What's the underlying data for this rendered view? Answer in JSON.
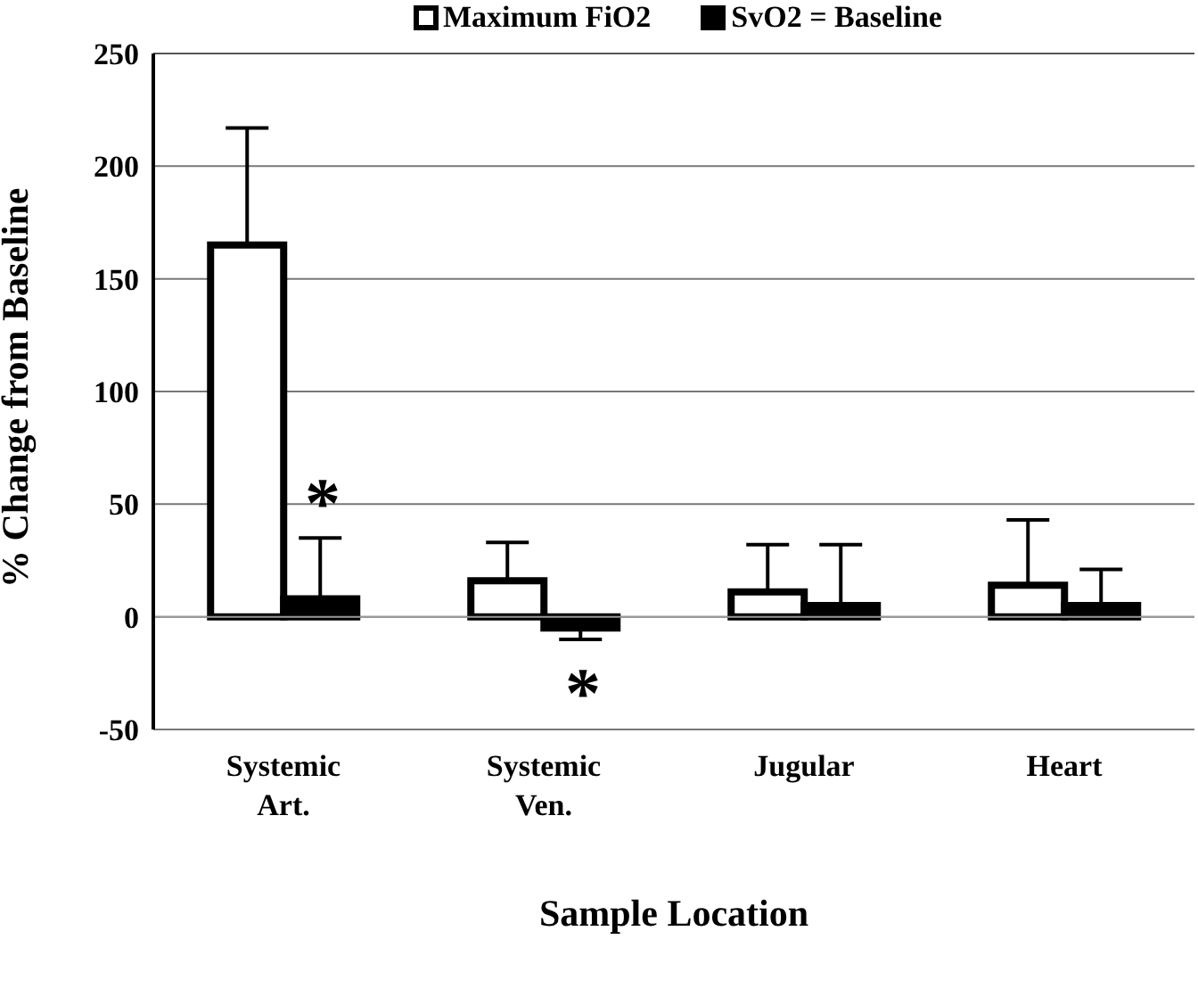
{
  "chart_data": {
    "type": "bar",
    "xlabel": "Sample Location",
    "ylabel": "% Change from Baseline",
    "categories": [
      "Systemic Art.",
      "Systemic Ven.",
      "Jugular",
      "Heart"
    ],
    "series": [
      {
        "name": "Maximum FiO2",
        "color": "#ffffff",
        "values": [
          165,
          16,
          11,
          14
        ],
        "errors": [
          [
            165,
            217
          ],
          [
            16,
            33
          ],
          [
            11,
            32
          ],
          [
            14,
            43
          ]
        ]
      },
      {
        "name": "SvO2 = Baseline",
        "color": "#000000",
        "values": [
          8,
          -5,
          5,
          5
        ],
        "errors": [
          [
            8,
            35
          ],
          [
            -10,
            -5
          ],
          [
            5,
            32
          ],
          [
            5,
            21
          ]
        ]
      }
    ],
    "ylim": [
      -50,
      250
    ],
    "yticks": [
      -50,
      0,
      50,
      100,
      150,
      200,
      250
    ],
    "grid": "y",
    "legend": "top",
    "annotations": [
      {
        "text": "*",
        "x": "Systemic Art.",
        "y": 35
      },
      {
        "text": "*",
        "x": "Systemic Ven.",
        "y": -5
      }
    ]
  }
}
